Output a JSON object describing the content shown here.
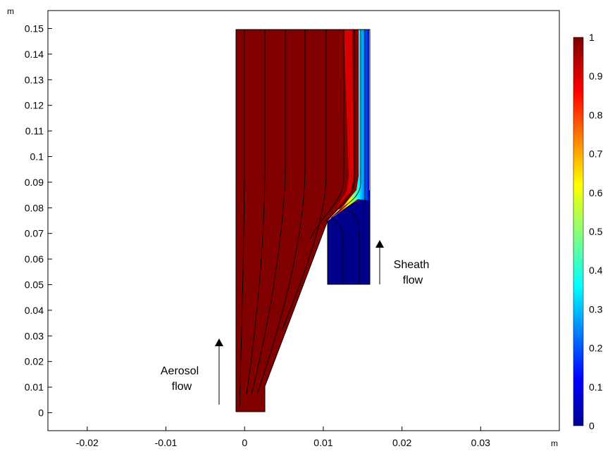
{
  "plot": {
    "x_unit": "m",
    "y_unit": "m",
    "xlim": [
      -0.025,
      0.04
    ],
    "ylim": [
      -0.007,
      0.157
    ],
    "x_ticks": [
      "-0.02",
      "-0.01",
      "0",
      "0.01",
      "0.02",
      "0.03"
    ],
    "y_ticks": [
      "0",
      "0.01",
      "0.02",
      "0.03",
      "0.04",
      "0.05",
      "0.06",
      "0.07",
      "0.08",
      "0.09",
      "0.1",
      "0.11",
      "0.12",
      "0.13",
      "0.14",
      "0.15"
    ],
    "colors": {
      "high": "#800000",
      "low": "#00008b",
      "frame": "#000000"
    }
  },
  "colorbar": {
    "ticks": [
      "0",
      "0.1",
      "0.2",
      "0.3",
      "0.4",
      "0.5",
      "0.6",
      "0.7",
      "0.8",
      "0.9",
      "1"
    ],
    "range": [
      0,
      1
    ],
    "colormap": "rainbow"
  },
  "annotations": {
    "aerosol_line1": "Aerosol",
    "aerosol_line2": "flow",
    "sheath_line1": "Sheath",
    "sheath_line2": "flow"
  }
}
